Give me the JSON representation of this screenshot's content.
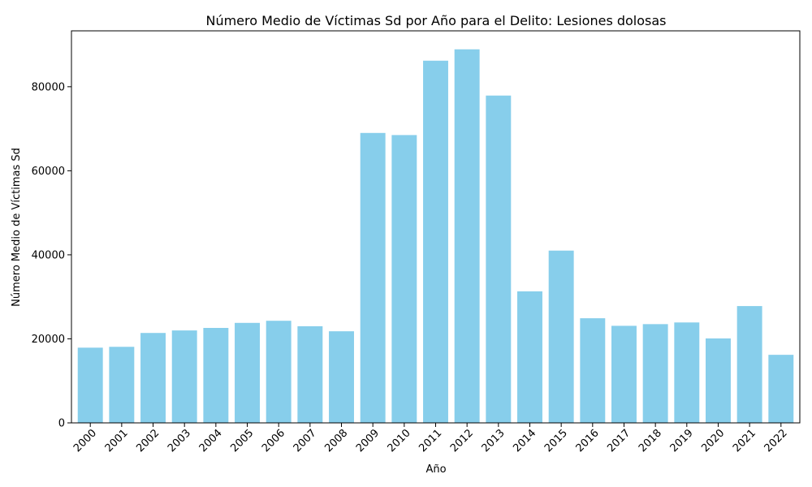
{
  "chart_data": {
    "type": "bar",
    "title": "Número Medio de Víctimas Sd por Año para el Delito: Lesiones dolosas",
    "xlabel": "Año",
    "ylabel": "Número Medio de Víctimas Sd",
    "categories": [
      "2000",
      "2001",
      "2002",
      "2003",
      "2004",
      "2005",
      "2006",
      "2007",
      "2008",
      "2009",
      "2010",
      "2011",
      "2012",
      "2013",
      "2014",
      "2015",
      "2016",
      "2017",
      "2018",
      "2019",
      "2020",
      "2021",
      "2022"
    ],
    "values": [
      17900,
      18100,
      21400,
      22000,
      22600,
      23800,
      24300,
      23000,
      21800,
      69000,
      68500,
      86200,
      88900,
      77900,
      31300,
      41000,
      24900,
      23100,
      23500,
      23900,
      20100,
      27800,
      16200
    ],
    "ylim": [
      0,
      93300
    ],
    "yticks": [
      0,
      20000,
      40000,
      60000,
      80000
    ],
    "grid": false,
    "bar_color": "#87ceeb"
  }
}
